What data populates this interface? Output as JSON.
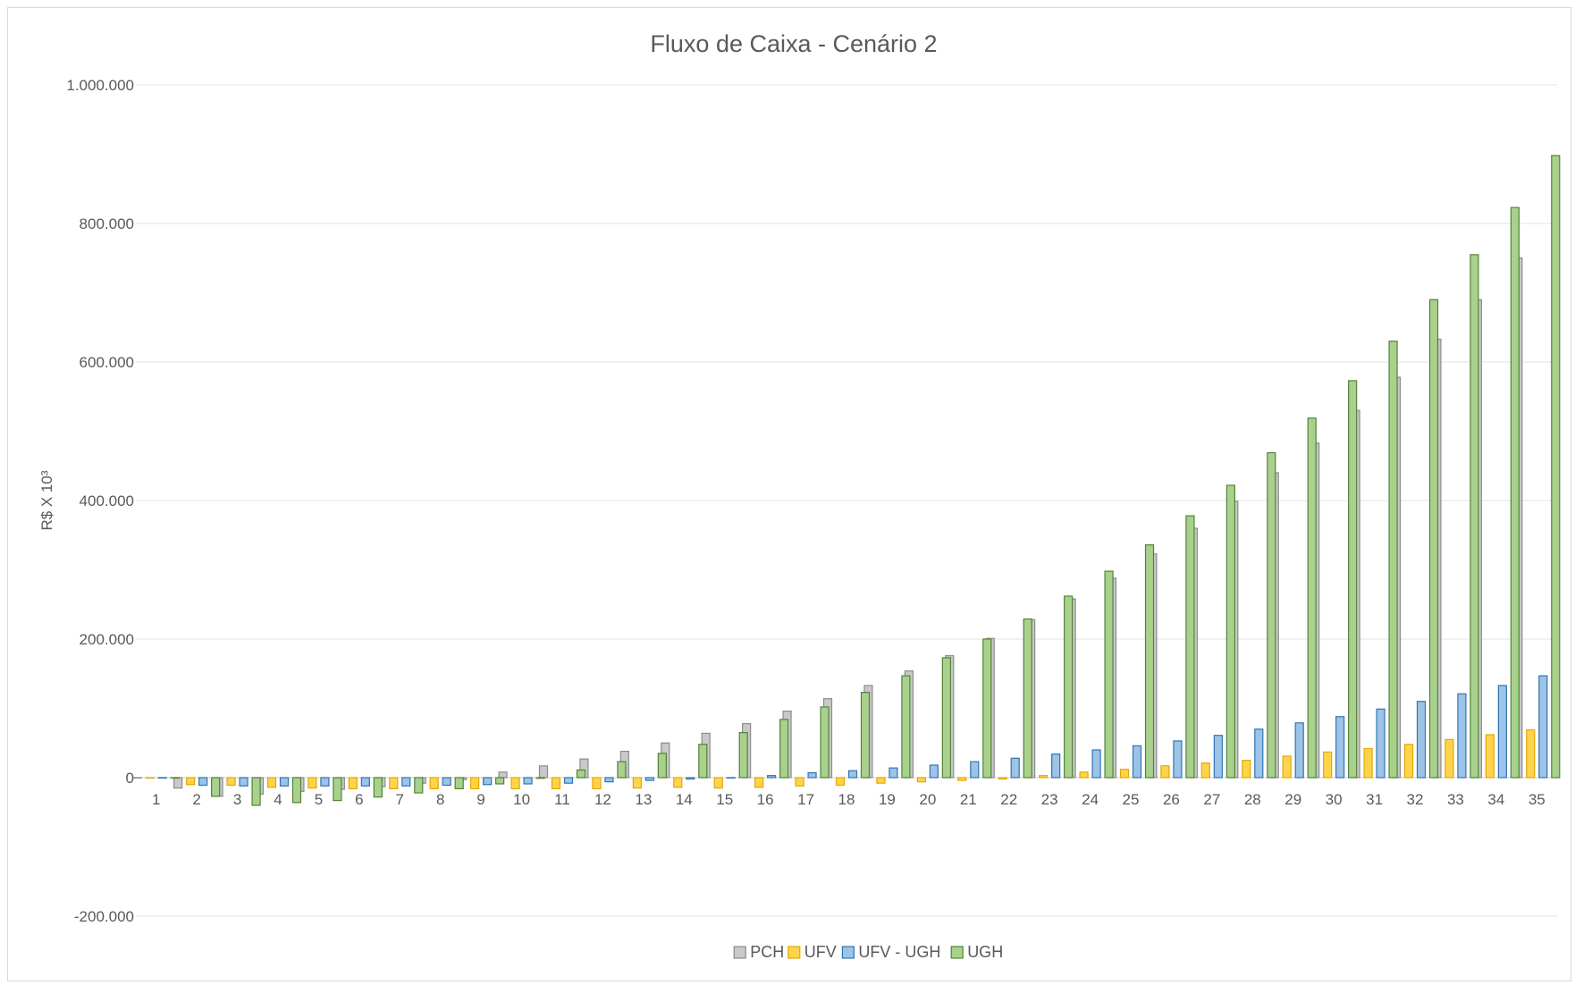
{
  "chart_data": {
    "type": "bar",
    "title": "Fluxo de Caixa - Cenário  2",
    "xlabel": "",
    "ylabel": "R$ X 10³",
    "ylim": [
      -200000,
      1000000
    ],
    "yticks": [
      -200000,
      0,
      200000,
      400000,
      600000,
      800000,
      1000000
    ],
    "ytick_labels": [
      "-200.000",
      "0",
      "200.000",
      "400.000",
      "600.000",
      "800.000",
      "1.000.000"
    ],
    "grid": "horizontal",
    "legend_position": "bottom",
    "categories": [
      "1",
      "2",
      "3",
      "4",
      "5",
      "6",
      "7",
      "8",
      "9",
      "10",
      "11",
      "12",
      "13",
      "14",
      "15",
      "16",
      "17",
      "18",
      "19",
      "20",
      "21",
      "22",
      "23",
      "24",
      "25",
      "26",
      "27",
      "28",
      "29",
      "30",
      "31",
      "32",
      "33",
      "34",
      "35"
    ],
    "series": [
      {
        "name": "PCH",
        "color": "#c9c9c9",
        "stroke": "#8c8c8c",
        "values": [
          0,
          -15000,
          -27000,
          -24000,
          -20000,
          -17000,
          -13000,
          -8000,
          -3000,
          8000,
          17000,
          27000,
          38000,
          50000,
          64000,
          78000,
          96000,
          114000,
          133000,
          154000,
          176000,
          201000,
          228000,
          258000,
          288000,
          323000,
          360000,
          399000,
          440000,
          483000,
          530000,
          578000,
          633000,
          690000,
          750000
        ]
      },
      {
        "name": "UFV",
        "color": "#ffd44d",
        "stroke": "#e3a800",
        "values": [
          0,
          -10000,
          -11000,
          -14000,
          -15000,
          -16000,
          -16000,
          -16000,
          -16000,
          -16000,
          -16000,
          -16000,
          -15000,
          -14000,
          -15000,
          -14000,
          -12000,
          -11000,
          -8000,
          -6000,
          -4000,
          -2000,
          3000,
          8000,
          12000,
          17000,
          21000,
          25000,
          31000,
          37000,
          42000,
          48000,
          55000,
          62000,
          69000
        ]
      },
      {
        "name": "UFV - UGH",
        "color": "#9dc3e6",
        "stroke": "#2e75b6",
        "values": [
          0,
          -11000,
          -12000,
          -12000,
          -12000,
          -12000,
          -12000,
          -11000,
          -10000,
          -9000,
          -8000,
          -6000,
          -4000,
          -2000,
          0,
          3000,
          7000,
          10000,
          14000,
          18000,
          23000,
          28000,
          34000,
          40000,
          46000,
          53000,
          61000,
          70000,
          79000,
          88000,
          99000,
          110000,
          121000,
          133000,
          147000
        ]
      },
      {
        "name": "UGH",
        "color": "#a9d18e",
        "stroke": "#548235",
        "values": [
          0,
          -27000,
          -40000,
          -36000,
          -33000,
          -28000,
          -22000,
          -16000,
          -9000,
          -1000,
          11000,
          23000,
          35000,
          48000,
          65000,
          84000,
          102000,
          123000,
          147000,
          173000,
          200000,
          229000,
          262000,
          298000,
          336000,
          378000,
          422000,
          469000,
          519000,
          573000,
          630000,
          690000,
          755000,
          823000,
          898000
        ]
      }
    ]
  }
}
